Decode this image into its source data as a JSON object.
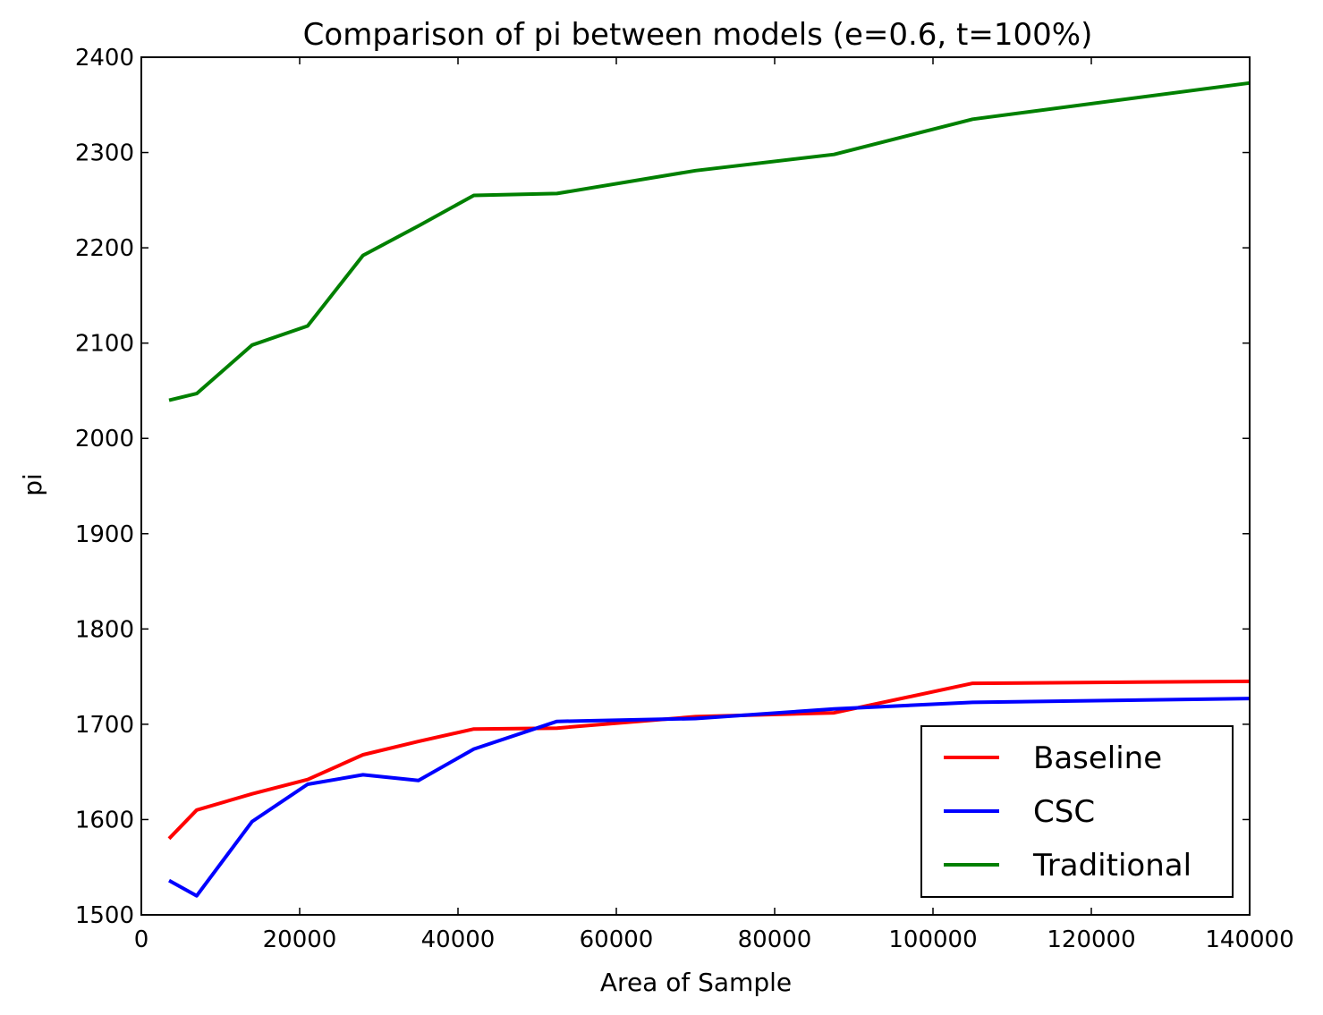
{
  "chart_data": {
    "type": "line",
    "title": "Comparison of pi between models (e=0.6, t=100%)",
    "xlabel": "Area of Sample",
    "ylabel": "pi",
    "xlim": [
      0,
      140000
    ],
    "ylim": [
      1500,
      2400
    ],
    "x_ticks": [
      0,
      20000,
      40000,
      60000,
      80000,
      100000,
      120000,
      140000
    ],
    "y_ticks": [
      1500,
      1600,
      1700,
      1800,
      1900,
      2000,
      2100,
      2200,
      2300,
      2400
    ],
    "grid": false,
    "legend_position": "lower-right",
    "series": [
      {
        "name": "Baseline",
        "color": "#ff0000",
        "x": [
          3500,
          7000,
          14000,
          21000,
          28000,
          35000,
          42000,
          52500,
          70000,
          87500,
          105000,
          140000
        ],
        "y": [
          1580,
          1610,
          1627,
          1642,
          1668,
          1682,
          1695,
          1696,
          1708,
          1712,
          1743,
          1745
        ]
      },
      {
        "name": "CSC",
        "color": "#0000ff",
        "x": [
          3500,
          7000,
          14000,
          21000,
          28000,
          35000,
          42000,
          52500,
          70000,
          87500,
          105000,
          140000
        ],
        "y": [
          1536,
          1520,
          1598,
          1637,
          1647,
          1641,
          1674,
          1703,
          1706,
          1716,
          1723,
          1727
        ]
      },
      {
        "name": "Traditional",
        "color": "#008000",
        "x": [
          3500,
          7000,
          14000,
          21000,
          28000,
          35000,
          42000,
          52500,
          70000,
          87500,
          105000,
          140000
        ],
        "y": [
          2040,
          2047,
          2098,
          2118,
          2192,
          2223,
          2255,
          2257,
          2281,
          2298,
          2335,
          2373
        ]
      }
    ]
  }
}
